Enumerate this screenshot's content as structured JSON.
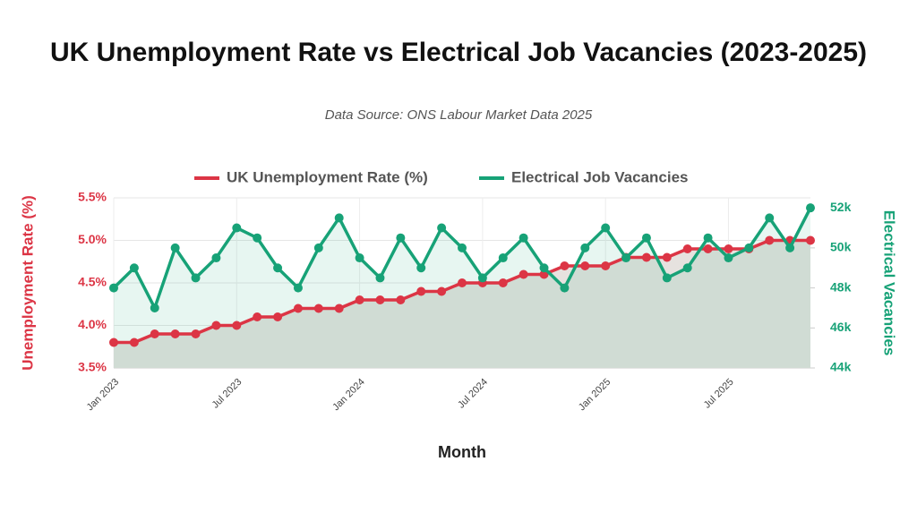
{
  "chart_data": {
    "type": "line",
    "title": "UK Unemployment Rate vs Electrical Job Vacancies (2023-2025)",
    "subtitle": "Data Source: ONS Labour Market Data 2025",
    "x_label": "Month",
    "y_label": "Unemployment Rate (%)",
    "y2_label": "Electrical Vacancies",
    "categories": [
      "Jan 2023",
      null,
      null,
      null,
      null,
      null,
      "Jul 2023",
      null,
      null,
      null,
      null,
      null,
      "Jan 2024",
      null,
      null,
      null,
      null,
      null,
      "Jul 2024",
      null,
      null,
      null,
      null,
      null,
      "Jan 2025",
      null,
      null,
      null,
      null,
      null,
      "Jul 2025",
      null,
      null,
      null,
      null
    ],
    "series": [
      {
        "name": "UK Unemployment Rate (%)",
        "color": "#dc3545",
        "fill": "#e6e2df",
        "axis": "y",
        "values": [
          3.8,
          3.8,
          3.9,
          3.9,
          3.9,
          4.0,
          4.0,
          4.1,
          4.1,
          4.2,
          4.2,
          4.2,
          4.3,
          4.3,
          4.3,
          4.4,
          4.4,
          4.5,
          4.5,
          4.5,
          4.6,
          4.6,
          4.7,
          4.7,
          4.7,
          4.8,
          4.8,
          4.8,
          4.9,
          4.9,
          4.9,
          4.9,
          5.0,
          5.0,
          5.0
        ]
      },
      {
        "name": "Electrical Job Vacancies",
        "color": "#17a277",
        "fill": "rgba(23,162,119,0.10)",
        "axis": "y2",
        "values": [
          48000,
          49000,
          47000,
          50000,
          48500,
          49500,
          51000,
          50500,
          49000,
          48000,
          50000,
          51500,
          49500,
          48500,
          50500,
          49000,
          51000,
          50000,
          48500,
          49500,
          50500,
          49000,
          48000,
          50000,
          51000,
          49500,
          50500,
          48500,
          49000,
          50500,
          49500,
          50000,
          51500,
          50000,
          52000
        ]
      }
    ],
    "ylim": [
      3.5,
      5.5
    ],
    "yticks": [
      {
        "value": 3.5,
        "label": "3.5%"
      },
      {
        "value": 4.0,
        "label": "4.0%"
      },
      {
        "value": 4.5,
        "label": "4.5%"
      },
      {
        "value": 5.0,
        "label": "5.0%"
      },
      {
        "value": 5.5,
        "label": "5.5%"
      }
    ],
    "y2lim": [
      44000,
      52500
    ],
    "y2ticks": [
      {
        "value": 44000,
        "label": "44k"
      },
      {
        "value": 46000,
        "label": "46k"
      },
      {
        "value": 48000,
        "label": "48k"
      },
      {
        "value": 50000,
        "label": "50k"
      },
      {
        "value": 52000,
        "label": "52k"
      }
    ],
    "grid": true
  }
}
